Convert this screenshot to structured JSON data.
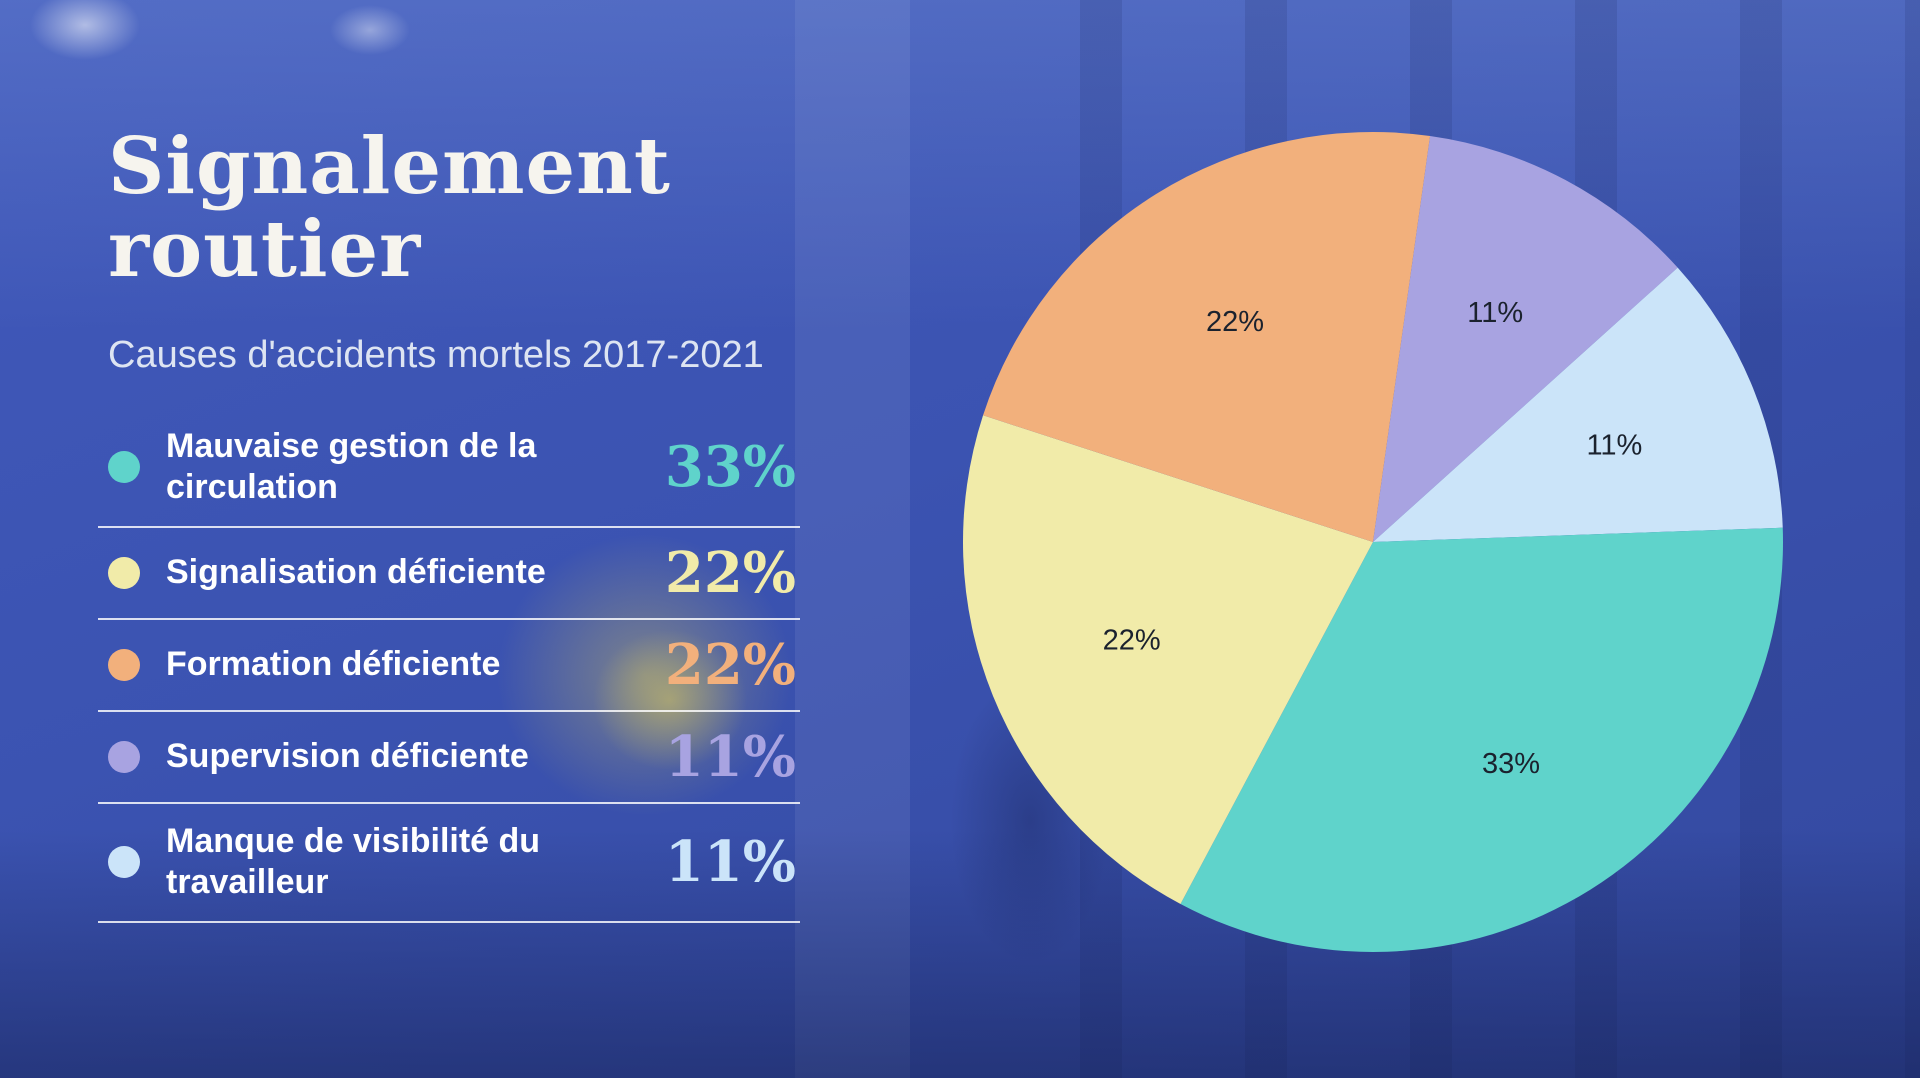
{
  "title": "Signalement routier",
  "subtitle": "Causes d'accidents mortels 2017-2021",
  "colors": {
    "background": "#3c55b4",
    "title_text": "#f6f4ee",
    "subtitle_text": "#dde4f2",
    "legend_text": "#ffffff",
    "divider": "rgba(255,255,255,0.82)",
    "slice_label_text": "#1b222e",
    "teal": "#5fd3cb",
    "yellow": "#f1eba9",
    "orange": "#f2b07c",
    "purple": "#a8a3e1",
    "lightblue": "#cbe4f9"
  },
  "legend": {
    "items": [
      {
        "label": "Mauvaise gestion de la circulation",
        "percent": "33%",
        "color": "#5fd3cb"
      },
      {
        "label": "Signalisation déficiente",
        "percent": "22%",
        "color": "#f1eba9"
      },
      {
        "label": "Formation déficiente",
        "percent": "22%",
        "color": "#f2b07c"
      },
      {
        "label": "Supervision déficiente",
        "percent": "11%",
        "color": "#a8a3e1"
      },
      {
        "label": "Manque de visibilité du travailleur",
        "percent": "11%",
        "color": "#cbe4f9"
      }
    ]
  },
  "chart_data": {
    "type": "pie",
    "title": "Signalement routier",
    "subtitle": "Causes d'accidents mortels 2017-2021",
    "unit": "percent",
    "start_angle_deg": 8,
    "direction": "clockwise",
    "label_radius_fraction": 0.635,
    "slices": [
      {
        "label": "Supervision déficiente",
        "value": 11,
        "display": "11%",
        "color": "#a8a3e1"
      },
      {
        "label": "Manque de visibilité du travailleur",
        "value": 11,
        "display": "11%",
        "color": "#cbe4f9"
      },
      {
        "label": "Mauvaise gestion de la circulation",
        "value": 33,
        "display": "33%",
        "color": "#5fd3cb"
      },
      {
        "label": "Signalisation déficiente",
        "value": 22,
        "display": "22%",
        "color": "#f1eba9"
      },
      {
        "label": "Formation déficiente",
        "value": 22,
        "display": "22%",
        "color": "#f2b07c"
      }
    ]
  }
}
